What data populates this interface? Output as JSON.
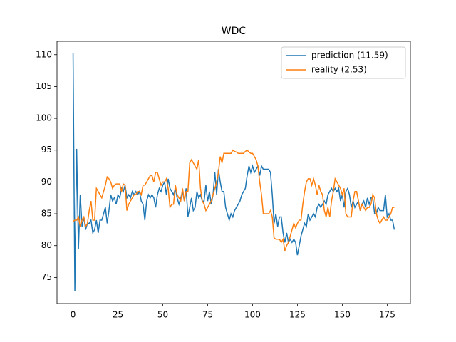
{
  "chart_data": {
    "type": "line",
    "title": "WDC",
    "x": [
      0,
      1,
      2,
      3,
      4,
      5,
      6,
      7,
      8,
      9,
      10,
      11,
      12,
      13,
      14,
      15,
      16,
      17,
      18,
      19,
      20,
      21,
      22,
      23,
      24,
      25,
      26,
      27,
      28,
      29,
      30,
      31,
      32,
      33,
      34,
      35,
      36,
      37,
      38,
      39,
      40,
      41,
      42,
      43,
      44,
      45,
      46,
      47,
      48,
      49,
      50,
      51,
      52,
      53,
      54,
      55,
      56,
      57,
      58,
      59,
      60,
      61,
      62,
      63,
      64,
      65,
      66,
      67,
      68,
      69,
      70,
      71,
      72,
      73,
      74,
      75,
      76,
      77,
      78,
      79,
      80,
      81,
      82,
      83,
      84,
      85,
      86,
      87,
      88,
      89,
      90,
      91,
      92,
      93,
      94,
      95,
      96,
      97,
      98,
      99,
      100,
      101,
      102,
      103,
      104,
      105,
      106,
      107,
      108,
      109,
      110,
      111,
      112,
      113,
      114,
      115,
      116,
      117,
      118,
      119,
      120,
      121,
      122,
      123,
      124,
      125,
      126,
      127,
      128,
      129,
      130,
      131,
      132,
      133,
      134,
      135,
      136,
      137,
      138,
      139,
      140,
      141,
      142,
      143,
      144,
      145,
      146,
      147,
      148,
      149,
      150,
      151,
      152,
      153,
      154,
      155,
      156,
      157,
      158,
      159,
      160,
      161,
      162,
      163,
      164,
      165,
      166,
      167,
      168,
      169,
      170,
      171,
      172,
      173,
      174,
      175,
      176,
      177,
      178,
      179
    ],
    "series": [
      {
        "name": "prediction (11.59)",
        "color": "#1f77b4",
        "values": [
          110.2,
          72.8,
          95.2,
          79.5,
          88,
          83,
          84.5,
          82.5,
          83.5,
          83.5,
          84,
          82,
          82.5,
          84,
          82,
          84,
          84,
          85,
          86,
          83.5,
          85.5,
          88,
          87,
          87.5,
          86.5,
          88,
          87.5,
          89,
          88.5,
          89.5,
          87.5,
          88,
          87.5,
          88.5,
          88,
          88.5,
          88,
          88.5,
          87,
          86.5,
          84,
          87,
          88,
          87.5,
          88,
          87.5,
          86,
          88,
          89,
          88.5,
          89.5,
          90,
          88,
          90.5,
          89,
          88.5,
          88,
          89,
          87.5,
          86.5,
          87.5,
          88.5,
          87,
          89,
          84.5,
          86,
          87.5,
          85.5,
          86,
          88.5,
          87.5,
          88,
          87,
          87,
          89.5,
          87,
          88.5,
          86.5,
          88,
          91.5,
          88,
          92,
          90,
          88.5,
          88.5,
          86,
          85,
          84,
          85,
          84.5,
          85.5,
          86,
          86.5,
          87,
          88,
          88.5,
          89,
          91,
          92.5,
          91.5,
          92.5,
          91.5,
          92,
          92.5,
          91,
          92.5,
          92,
          92,
          92,
          92,
          91.5,
          88,
          83.5,
          85,
          83,
          84.5,
          84.5,
          82,
          80.5,
          82,
          80.5,
          81,
          80.5,
          81,
          80.5,
          78.5,
          80,
          81.5,
          82.5,
          83.5,
          83,
          85,
          84,
          84.5,
          85,
          84.5,
          86,
          86.5,
          86,
          86.5,
          87,
          86.5,
          88,
          88.5,
          89,
          88.5,
          89,
          88.5,
          89,
          87,
          88,
          86,
          88.5,
          89,
          88,
          86,
          87,
          86,
          86.5,
          87,
          85.5,
          86.5,
          87,
          86,
          87.5,
          86.5,
          87.5,
          87.5,
          85,
          85,
          86,
          85.5,
          85.5,
          85.5,
          88,
          84.5,
          85,
          84,
          84,
          82.5
        ]
      },
      {
        "name": "reality (2.53)",
        "color": "#ff7f0e",
        "values": [
          83.8,
          84,
          84,
          84.5,
          83,
          84,
          84.5,
          83,
          83.5,
          85.5,
          87,
          84,
          84,
          89,
          88.5,
          88,
          87.5,
          88.5,
          89.5,
          90.8,
          90.5,
          90,
          89,
          89.5,
          89.7,
          89.7,
          89.7,
          88.5,
          89.7,
          89.5,
          85.5,
          86.5,
          87,
          87.5,
          88,
          88,
          88.5,
          88.5,
          88,
          89.5,
          89.5,
          90,
          90.5,
          91,
          91,
          90,
          91.5,
          91.5,
          90.5,
          89.5,
          90,
          90,
          90.5,
          89,
          86,
          86.5,
          86.5,
          89.5,
          88,
          87.5,
          87,
          89,
          87,
          88.5,
          88.5,
          93,
          93.5,
          93,
          92.5,
          92,
          93.5,
          89,
          87,
          86.5,
          85.5,
          86,
          86.5,
          87,
          88,
          89,
          90,
          91.5,
          94,
          93,
          94.5,
          94.5,
          94.5,
          94.5,
          94.5,
          95,
          94.8,
          94.7,
          94.5,
          94.5,
          94.5,
          94.5,
          94.8,
          95,
          94.7,
          94.5,
          94.5,
          94,
          93.5,
          92.5,
          90,
          88,
          85,
          85,
          85,
          85,
          85.5,
          84.5,
          81.2,
          81,
          81,
          81,
          80.5,
          81,
          79.2,
          80,
          80.5,
          81.5,
          82.5,
          83.5,
          82.8,
          83.5,
          84,
          84,
          86.5,
          88.5,
          90,
          90.5,
          90.5,
          89.5,
          90.5,
          89.5,
          88,
          89.5,
          88.5,
          88,
          85.5,
          84.5,
          86,
          84.5,
          87,
          88.5,
          90.5,
          90,
          89.5,
          89,
          88,
          89,
          85,
          84.5,
          84.5,
          84.5,
          87,
          88.5,
          88.5,
          87,
          85.5,
          86.5,
          86,
          85.5,
          86,
          86,
          86.5,
          88,
          87.5,
          85,
          84,
          83.5,
          84,
          84.5,
          84,
          84,
          84.5,
          85,
          86,
          86
        ]
      }
    ],
    "xlim": [
      -8.95,
      187.95
    ],
    "ylim": [
      70.9,
      112.1
    ],
    "xticks": [
      0,
      25,
      50,
      75,
      100,
      125,
      150,
      175
    ],
    "yticks": [
      75,
      80,
      85,
      90,
      95,
      100,
      105,
      110
    ],
    "legend": "upper right"
  }
}
